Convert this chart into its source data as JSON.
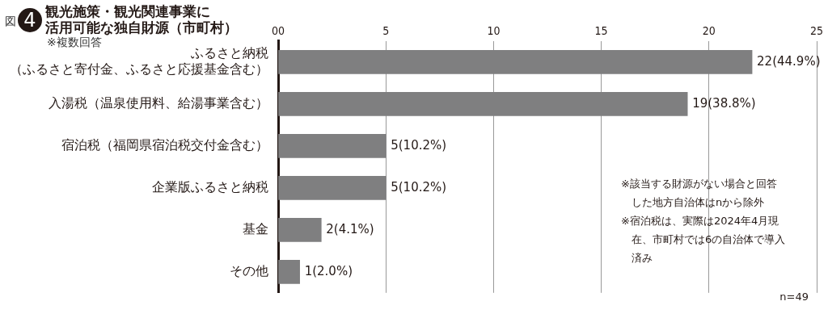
{
  "chart_data": {
    "type": "bar",
    "orientation": "horizontal",
    "title": "観光施策・観光関連事業に活用可能な独自財源（市町村）",
    "subtitle": "※複数回答",
    "categories": [
      "ふるさと納税（ふるさと寄付金、ふるさと応援基金含む）",
      "入湯税（温泉使用料、給湯事業含む）",
      "宿泊税（福岡県宿泊税交付金含む）",
      "企業版ふるさと納税",
      "基金",
      "その他"
    ],
    "values": [
      22,
      19,
      5,
      5,
      2,
      1
    ],
    "value_labels": [
      "22(44.9%)",
      "19(38.8%)",
      "5(10.2%)",
      "5(10.2%)",
      "2(4.1%)",
      "1(2.0%)"
    ],
    "color": "#7f7f80",
    "xlim": [
      0,
      25
    ],
    "xticks": [
      {
        "value": 0,
        "label": "00"
      },
      5,
      10,
      15,
      20,
      25
    ],
    "grid": "x",
    "legend": false,
    "annotations": [
      "図",
      "4",
      "※該当する財源がない場合と回答した地方自治体はnから除外",
      "※宿泊税は、実際は2024年4月現在、市町村では6の自治体で導入済み",
      "n=49"
    ]
  }
}
